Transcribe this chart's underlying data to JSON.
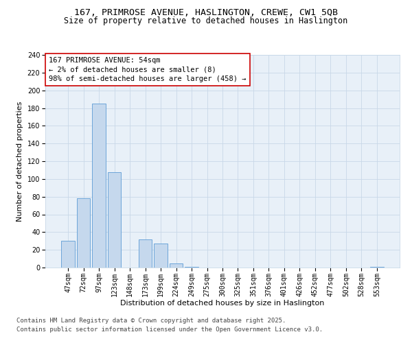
{
  "title_line1": "167, PRIMROSE AVENUE, HASLINGTON, CREWE, CW1 5QB",
  "title_line2": "Size of property relative to detached houses in Haslington",
  "xlabel": "Distribution of detached houses by size in Haslington",
  "ylabel": "Number of detached properties",
  "categories": [
    "47sqm",
    "72sqm",
    "97sqm",
    "123sqm",
    "148sqm",
    "173sqm",
    "199sqm",
    "224sqm",
    "249sqm",
    "275sqm",
    "300sqm",
    "325sqm",
    "351sqm",
    "376sqm",
    "401sqm",
    "426sqm",
    "452sqm",
    "477sqm",
    "502sqm",
    "528sqm",
    "553sqm"
  ],
  "values": [
    30,
    78,
    185,
    108,
    0,
    32,
    27,
    5,
    1,
    0,
    0,
    0,
    0,
    0,
    0,
    0,
    0,
    0,
    0,
    0,
    1
  ],
  "bar_color": "#c5d8ed",
  "bar_edge_color": "#5b9bd5",
  "ylim": [
    0,
    240
  ],
  "yticks": [
    0,
    20,
    40,
    60,
    80,
    100,
    120,
    140,
    160,
    180,
    200,
    220,
    240
  ],
  "grid_color": "#c8d8e8",
  "bg_color": "#e8f0f8",
  "annotation_title": "167 PRIMROSE AVENUE: 54sqm",
  "annotation_line2": "← 2% of detached houses are smaller (8)",
  "annotation_line3": "98% of semi-detached houses are larger (458) →",
  "annotation_box_edge": "#cc0000",
  "footer_line1": "Contains HM Land Registry data © Crown copyright and database right 2025.",
  "footer_line2": "Contains public sector information licensed under the Open Government Licence v3.0.",
  "title_fontsize": 9.5,
  "subtitle_fontsize": 8.5,
  "axis_label_fontsize": 8,
  "tick_fontsize": 7,
  "annotation_fontsize": 7.5,
  "footer_fontsize": 6.5
}
